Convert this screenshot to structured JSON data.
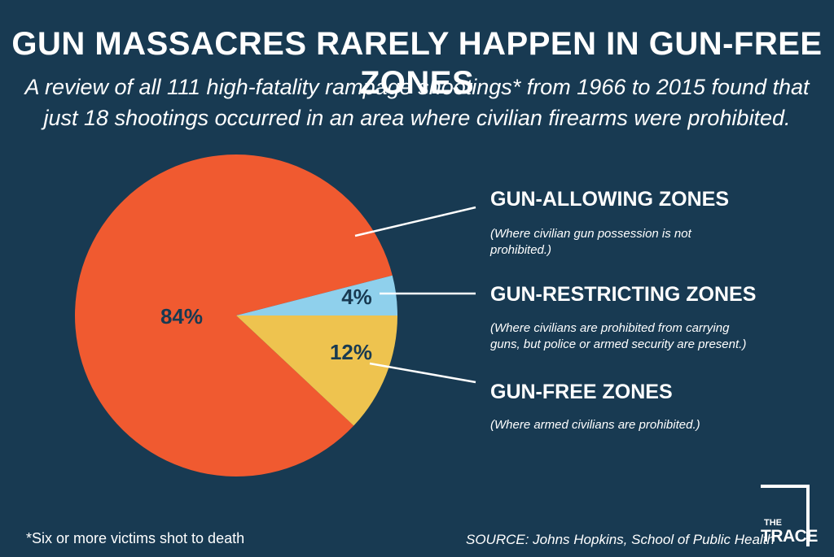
{
  "header": {
    "title": "GUN MASSACRES RARELY HAPPEN IN GUN-FREE ZONES",
    "subtitle": "A review of all 111 high-fatality rampage shootings* from 1966 to 2015 found that just 18 shootings occurred in an area where civilian firearms were prohibited."
  },
  "chart_data": {
    "type": "pie",
    "title": "GUN MASSACRES RARELY HAPPEN IN GUN-FREE ZONES",
    "slices": [
      {
        "name": "GUN-ALLOWING ZONES",
        "description": "(Where civilian gun possession is not prohibited.)",
        "value": 84,
        "label": "84%",
        "color": "#f05a30"
      },
      {
        "name": "GUN-RESTRICTING ZONES",
        "description": "(Where civilians are prohibited from carrying guns, but police or armed security are present.)",
        "value": 4,
        "label": "4%",
        "color": "#8fd0ec"
      },
      {
        "name": "GUN-FREE ZONES",
        "description": "(Where armed civilians are prohibited.)",
        "value": 12,
        "label": "12%",
        "color": "#eec34f"
      }
    ],
    "legend_placement": "right"
  },
  "footer": {
    "footnote": "*Six or more victims shot to death",
    "source": "SOURCE: Johns Hopkins, School of Public Health"
  },
  "logo": {
    "line1": "THE",
    "line2": "TRACE"
  }
}
